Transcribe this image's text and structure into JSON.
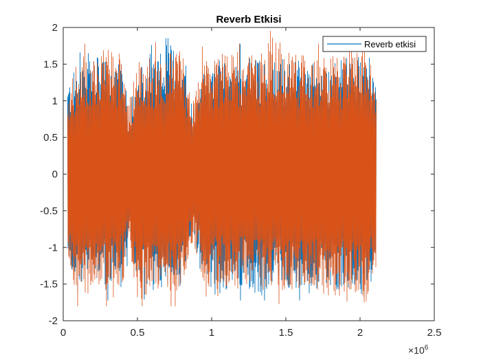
{
  "chart_data": {
    "type": "line",
    "title": "Reverb Etkisi",
    "xlabel": "",
    "ylabel": "",
    "x_multiplier_label": "×10",
    "x_multiplier_exponent": "6",
    "xlim": [
      0,
      2500000
    ],
    "ylim": [
      -2,
      2
    ],
    "x_ticks": [
      0,
      500000,
      1000000,
      1500000,
      2000000,
      2500000
    ],
    "x_tick_labels": [
      "0",
      "0.5",
      "1",
      "1.5",
      "2",
      "2.5"
    ],
    "y_ticks": [
      -2,
      -1.5,
      -1,
      -0.5,
      0,
      0.5,
      1,
      1.5,
      2
    ],
    "y_tick_labels": [
      "-2",
      "-1.5",
      "-1",
      "-0.5",
      "0",
      "0.5",
      "1",
      "1.5",
      "2"
    ],
    "grid": false,
    "legend_position": "top-right",
    "x_data_range": [
      30000,
      2110000
    ],
    "series": [
      {
        "name": "Reverb etkisi",
        "color": "#0072BD",
        "peak_max": 1.85,
        "peak_min": -1.72,
        "envelope": [
          [
            30000,
            1.25,
            -1.2
          ],
          [
            100000,
            1.5,
            -1.55
          ],
          [
            200000,
            1.62,
            -1.45
          ],
          [
            300000,
            1.55,
            -1.6
          ],
          [
            400000,
            1.5,
            -1.5
          ],
          [
            440000,
            0.9,
            -0.9
          ],
          [
            500000,
            1.5,
            -1.45
          ],
          [
            600000,
            1.55,
            -1.6
          ],
          [
            700000,
            1.85,
            -1.5
          ],
          [
            800000,
            1.6,
            -1.55
          ],
          [
            870000,
            0.95,
            -0.9
          ],
          [
            950000,
            1.45,
            -1.5
          ],
          [
            1050000,
            1.55,
            -1.65
          ],
          [
            1150000,
            1.5,
            -1.55
          ],
          [
            1250000,
            1.6,
            -1.6
          ],
          [
            1350000,
            1.55,
            -1.7
          ],
          [
            1400000,
            1.6,
            -1.5
          ],
          [
            1500000,
            1.5,
            -1.55
          ],
          [
            1600000,
            1.55,
            -1.6
          ],
          [
            1700000,
            1.5,
            -1.5
          ],
          [
            1800000,
            1.5,
            -1.6
          ],
          [
            1900000,
            1.6,
            -1.55
          ],
          [
            1980000,
            1.65,
            -1.65
          ],
          [
            2050000,
            1.5,
            -1.72
          ],
          [
            2110000,
            1.2,
            -1.2
          ]
        ]
      },
      {
        "name": "",
        "color": "#D95319",
        "peak_max": 1.95,
        "peak_min": -1.8,
        "envelope": [
          [
            30000,
            1.2,
            -1.15
          ],
          [
            100000,
            1.55,
            -1.8
          ],
          [
            200000,
            1.7,
            -1.55
          ],
          [
            300000,
            1.7,
            -1.6
          ],
          [
            400000,
            1.55,
            -1.5
          ],
          [
            440000,
            0.95,
            -0.95
          ],
          [
            500000,
            1.6,
            -1.75
          ],
          [
            600000,
            1.6,
            -1.6
          ],
          [
            700000,
            1.65,
            -1.6
          ],
          [
            800000,
            1.7,
            -1.6
          ],
          [
            870000,
            0.95,
            -0.95
          ],
          [
            950000,
            1.6,
            -1.55
          ],
          [
            1050000,
            1.6,
            -1.5
          ],
          [
            1150000,
            1.65,
            -1.6
          ],
          [
            1250000,
            1.6,
            -1.5
          ],
          [
            1350000,
            1.7,
            -1.6
          ],
          [
            1400000,
            1.95,
            -1.55
          ],
          [
            1500000,
            1.7,
            -1.6
          ],
          [
            1600000,
            1.65,
            -1.6
          ],
          [
            1700000,
            1.6,
            -1.55
          ],
          [
            1800000,
            1.65,
            -1.75
          ],
          [
            1900000,
            1.6,
            -1.6
          ],
          [
            1980000,
            1.95,
            -1.65
          ],
          [
            2050000,
            1.9,
            -1.8
          ],
          [
            2110000,
            1.2,
            -1.15
          ]
        ]
      }
    ]
  }
}
